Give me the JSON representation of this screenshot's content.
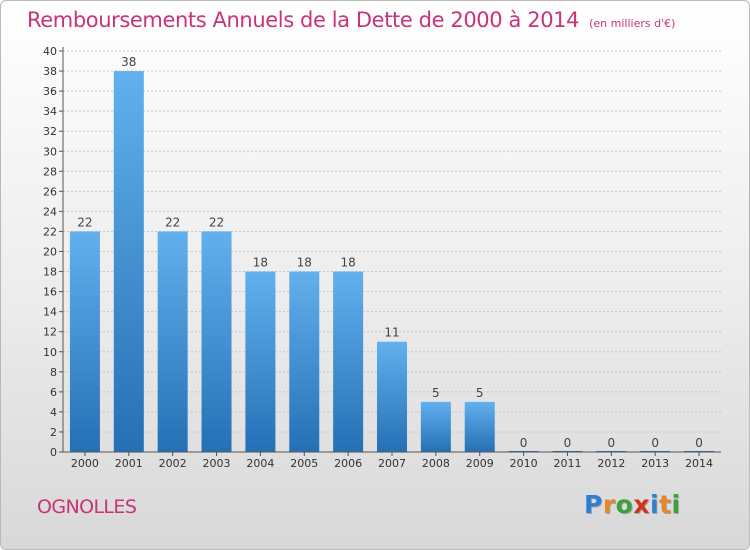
{
  "title": "Remboursements Annuels de la Dette de 2000 à 2014",
  "title_unit": "(en milliers d'€)",
  "city": "OGNOLLES",
  "logo": {
    "text": "Proxiti",
    "letter_colors": [
      "#2f7fd0",
      "#e8852a",
      "#3aa43a",
      "#d0321e",
      "#2f7fd0",
      "#e8852a",
      "#3aa43a"
    ]
  },
  "colors": {
    "title": "#c8337a",
    "bar_top": "#62b0ee",
    "bar_bottom": "#2570b5",
    "grid": "#c8c8c8"
  },
  "chart_data": {
    "type": "bar",
    "title": "Remboursements Annuels de la Dette de 2000 à 2014",
    "xlabel": "",
    "ylabel": "",
    "categories": [
      "2000",
      "2001",
      "2002",
      "2003",
      "2004",
      "2005",
      "2006",
      "2007",
      "2008",
      "2009",
      "2010",
      "2011",
      "2012",
      "2013",
      "2014"
    ],
    "values": [
      22,
      38,
      22,
      22,
      18,
      18,
      18,
      11,
      5,
      5,
      0,
      0,
      0,
      0,
      0
    ],
    "ylim": [
      0,
      40
    ],
    "ytick_step": 2,
    "grid": true,
    "data_labels": true
  }
}
